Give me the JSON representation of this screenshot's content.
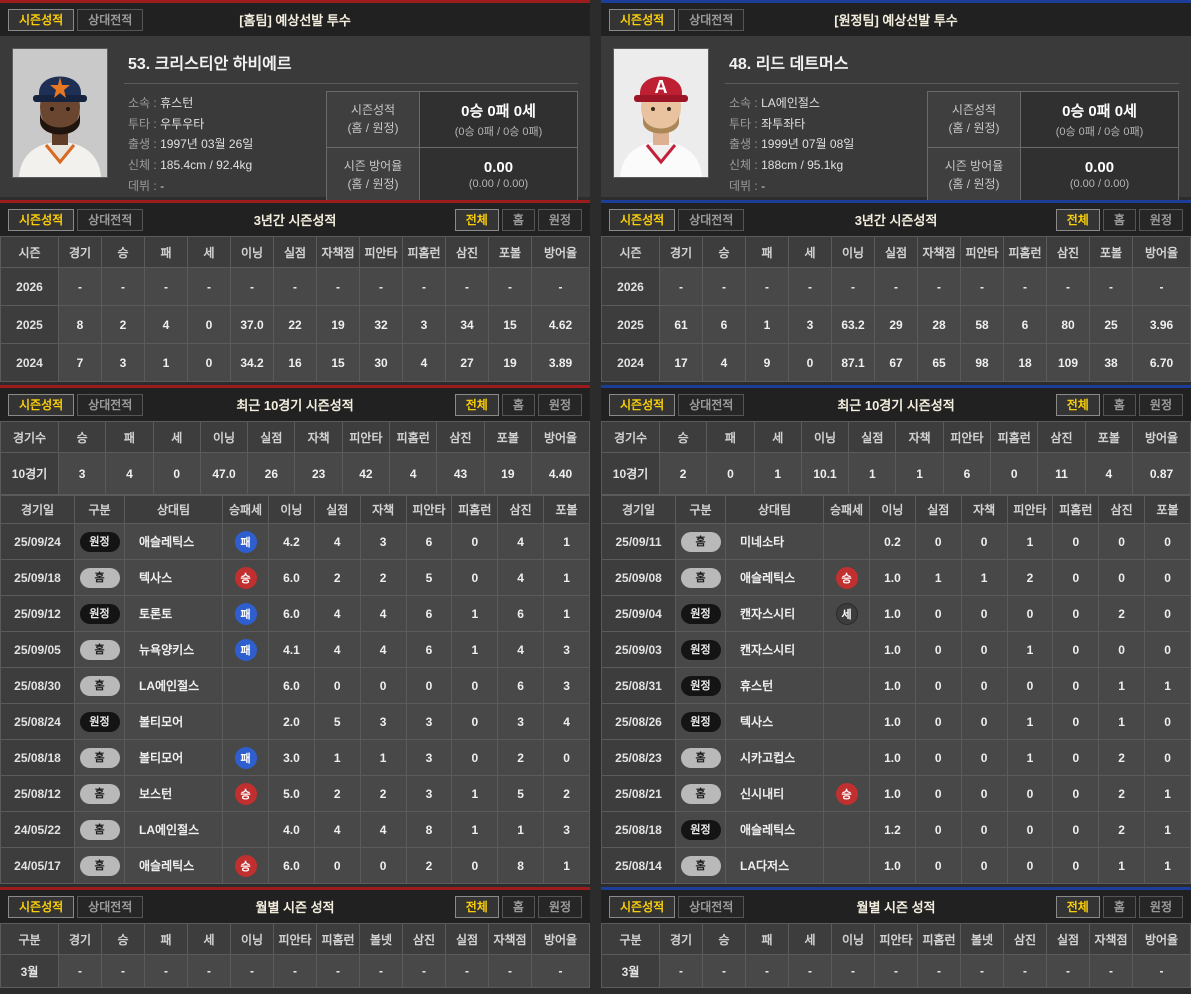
{
  "common": {
    "tabs": [
      "시즌성적",
      "상대전적"
    ],
    "filters": [
      "전체",
      "홈",
      "원정"
    ],
    "titles": {
      "three_year": "3년간 시즌성적",
      "recent10": "최근 10경기 시즌성적",
      "monthly": "월별 시즌 성적"
    },
    "columns": {
      "three_year": [
        "시즌",
        "경기",
        "승",
        "패",
        "세",
        "이닝",
        "실점",
        "자책점",
        "피안타",
        "피홈런",
        "삼진",
        "포볼",
        "방어율"
      ],
      "recent10": [
        "경기수",
        "승",
        "패",
        "세",
        "이닝",
        "실점",
        "자책",
        "피안타",
        "피홈런",
        "삼진",
        "포볼",
        "방어율"
      ],
      "gamelog": [
        "경기일",
        "구분",
        "상대팀",
        "승패세",
        "이닝",
        "실점",
        "자책",
        "피안타",
        "피홈런",
        "삼진",
        "포볼"
      ],
      "monthly": [
        "구분",
        "경기",
        "승",
        "패",
        "세",
        "이닝",
        "피안타",
        "피홈런",
        "볼넷",
        "삼진",
        "실점",
        "자책점",
        "방어율"
      ]
    },
    "badge_labels": {
      "win": "승",
      "loss": "패",
      "save": "세",
      "home": "홈",
      "away": "원정"
    },
    "colors": {
      "accent_home": "#9c1b1b",
      "accent_away": "#1c3e99",
      "win": "#c22f2f",
      "loss": "#2f5fce",
      "save": "#3c3c3c",
      "tab_active": "#f8cd0a"
    }
  },
  "home": {
    "section_title": "[홈팀] 예상선발 투수",
    "player": {
      "name": "53. 크리스티안 하비에르",
      "info": [
        {
          "label": "소속",
          "value": "휴스턴"
        },
        {
          "label": "투타",
          "value": "우투우타"
        },
        {
          "label": "출생",
          "value": "1997년 03월 26일"
        },
        {
          "label": "신체",
          "value": "185.4cm / 92.4kg"
        },
        {
          "label": "데뷔",
          "value": "-"
        }
      ],
      "record": {
        "label": "시즌성적",
        "label_sub": "(홈 / 원정)",
        "value": "0승 0패 0세",
        "sub": "(0승 0패 / 0승 0패)"
      },
      "era": {
        "label": "시즌 방어율",
        "label_sub": "(홈 / 원정)",
        "value": "0.00",
        "sub": "(0.00 / 0.00)"
      }
    },
    "three_year_rows": [
      [
        "2026",
        "-",
        "-",
        "-",
        "-",
        "-",
        "-",
        "-",
        "-",
        "-",
        "-",
        "-",
        "-"
      ],
      [
        "2025",
        "8",
        "2",
        "4",
        "0",
        "37.0",
        "22",
        "19",
        "32",
        "3",
        "34",
        "15",
        "4.62"
      ],
      [
        "2024",
        "7",
        "3",
        "1",
        "0",
        "34.2",
        "16",
        "15",
        "30",
        "4",
        "27",
        "19",
        "3.89"
      ]
    ],
    "recent10_rows": [
      [
        "10경기",
        "3",
        "4",
        "0",
        "47.0",
        "26",
        "23",
        "42",
        "4",
        "43",
        "19",
        "4.40"
      ]
    ],
    "gamelog_rows": [
      [
        "25/09/24",
        "원정",
        "애슬레틱스",
        "패",
        "4.2",
        "4",
        "3",
        "6",
        "0",
        "4",
        "1"
      ],
      [
        "25/09/18",
        "홈",
        "텍사스",
        "승",
        "6.0",
        "2",
        "2",
        "5",
        "0",
        "4",
        "1"
      ],
      [
        "25/09/12",
        "원정",
        "토론토",
        "패",
        "6.0",
        "4",
        "4",
        "6",
        "1",
        "6",
        "1"
      ],
      [
        "25/09/05",
        "홈",
        "뉴욕양키스",
        "패",
        "4.1",
        "4",
        "4",
        "6",
        "1",
        "4",
        "3"
      ],
      [
        "25/08/30",
        "홈",
        "LA에인절스",
        "",
        "6.0",
        "0",
        "0",
        "0",
        "0",
        "6",
        "3"
      ],
      [
        "25/08/24",
        "원정",
        "볼티모어",
        "",
        "2.0",
        "5",
        "3",
        "3",
        "0",
        "3",
        "4"
      ],
      [
        "25/08/18",
        "홈",
        "볼티모어",
        "패",
        "3.0",
        "1",
        "1",
        "3",
        "0",
        "2",
        "0"
      ],
      [
        "25/08/12",
        "홈",
        "보스턴",
        "승",
        "5.0",
        "2",
        "2",
        "3",
        "1",
        "5",
        "2"
      ],
      [
        "24/05/22",
        "홈",
        "LA에인절스",
        "",
        "4.0",
        "4",
        "4",
        "8",
        "1",
        "1",
        "3"
      ],
      [
        "24/05/17",
        "홈",
        "애슬레틱스",
        "승",
        "6.0",
        "0",
        "0",
        "2",
        "0",
        "8",
        "1"
      ]
    ],
    "monthly_rows": [
      [
        "3월",
        "-",
        "-",
        "-",
        "-",
        "-",
        "-",
        "-",
        "-",
        "-",
        "-",
        "-",
        "-"
      ]
    ]
  },
  "away": {
    "section_title": "[원정팀] 예상선발 투수",
    "player": {
      "name": "48. 리드 데트머스",
      "info": [
        {
          "label": "소속",
          "value": "LA에인절스"
        },
        {
          "label": "투타",
          "value": "좌투좌타"
        },
        {
          "label": "출생",
          "value": "1999년 07월 08일"
        },
        {
          "label": "신체",
          "value": "188cm / 95.1kg"
        },
        {
          "label": "데뷔",
          "value": "-"
        }
      ],
      "record": {
        "label": "시즌성적",
        "label_sub": "(홈 / 원정)",
        "value": "0승 0패 0세",
        "sub": "(0승 0패 / 0승 0패)"
      },
      "era": {
        "label": "시즌 방어율",
        "label_sub": "(홈 / 원정)",
        "value": "0.00",
        "sub": "(0.00 / 0.00)"
      }
    },
    "three_year_rows": [
      [
        "2026",
        "-",
        "-",
        "-",
        "-",
        "-",
        "-",
        "-",
        "-",
        "-",
        "-",
        "-",
        "-"
      ],
      [
        "2025",
        "61",
        "6",
        "1",
        "3",
        "63.2",
        "29",
        "28",
        "58",
        "6",
        "80",
        "25",
        "3.96"
      ],
      [
        "2024",
        "17",
        "4",
        "9",
        "0",
        "87.1",
        "67",
        "65",
        "98",
        "18",
        "109",
        "38",
        "6.70"
      ]
    ],
    "recent10_rows": [
      [
        "10경기",
        "2",
        "0",
        "1",
        "10.1",
        "1",
        "1",
        "6",
        "0",
        "11",
        "4",
        "0.87"
      ]
    ],
    "gamelog_rows": [
      [
        "25/09/11",
        "홈",
        "미네소타",
        "",
        "0.2",
        "0",
        "0",
        "1",
        "0",
        "0",
        "0"
      ],
      [
        "25/09/08",
        "홈",
        "애슬레틱스",
        "승",
        "1.0",
        "1",
        "1",
        "2",
        "0",
        "0",
        "0"
      ],
      [
        "25/09/04",
        "원정",
        "캔자스시티",
        "세",
        "1.0",
        "0",
        "0",
        "0",
        "0",
        "2",
        "0"
      ],
      [
        "25/09/03",
        "원정",
        "캔자스시티",
        "",
        "1.0",
        "0",
        "0",
        "1",
        "0",
        "0",
        "0"
      ],
      [
        "25/08/31",
        "원정",
        "휴스턴",
        "",
        "1.0",
        "0",
        "0",
        "0",
        "0",
        "1",
        "1"
      ],
      [
        "25/08/26",
        "원정",
        "텍사스",
        "",
        "1.0",
        "0",
        "0",
        "1",
        "0",
        "1",
        "0"
      ],
      [
        "25/08/23",
        "홈",
        "시카고컵스",
        "",
        "1.0",
        "0",
        "0",
        "1",
        "0",
        "2",
        "0"
      ],
      [
        "25/08/21",
        "홈",
        "신시내티",
        "승",
        "1.0",
        "0",
        "0",
        "0",
        "0",
        "2",
        "1"
      ],
      [
        "25/08/18",
        "원정",
        "애슬레틱스",
        "",
        "1.2",
        "0",
        "0",
        "0",
        "0",
        "2",
        "1"
      ],
      [
        "25/08/14",
        "홈",
        "LA다저스",
        "",
        "1.0",
        "0",
        "0",
        "0",
        "0",
        "1",
        "1"
      ]
    ],
    "monthly_rows": [
      [
        "3월",
        "-",
        "-",
        "-",
        "-",
        "-",
        "-",
        "-",
        "-",
        "-",
        "-",
        "-",
        "-"
      ]
    ]
  }
}
